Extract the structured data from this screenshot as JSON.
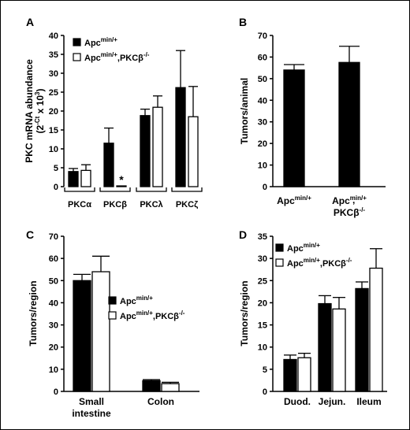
{
  "colors": {
    "series1": "#000000",
    "series2": "#ffffff",
    "stroke": "#000000"
  },
  "chart_data": [
    {
      "panel": "A",
      "type": "bar",
      "ylabel": "PKC mRNA abundance",
      "ylabel_units": "(2",
      "ylabel_sup": "-Ct",
      "ylabel_end": " x 10",
      "ylabel_sup2": "3",
      "ylabel_close": ")",
      "ylim": [
        0,
        40
      ],
      "yticks": [
        0,
        5,
        10,
        15,
        20,
        25,
        30,
        35,
        40
      ],
      "categories": [
        "PKCα",
        "PKCβ",
        "PKCλ",
        "PKCζ"
      ],
      "category_style": "bracket",
      "series": [
        {
          "name": "Apc",
          "name_sup": "min/+",
          "values": [
            4.0,
            11.5,
            18.8,
            26.2
          ],
          "errors": [
            0.8,
            4.0,
            1.7,
            9.8
          ]
        },
        {
          "name": "Apc",
          "name_sup": "min/+",
          "name_suffix": ",PKCβ",
          "name_suffix_sup": "-/-",
          "values": [
            4.3,
            0.2,
            21.0,
            18.5
          ],
          "errors": [
            1.5,
            0.0,
            3.0,
            8.0
          ]
        }
      ],
      "annotations": [
        {
          "text": "*",
          "category": 1,
          "series": 1
        }
      ],
      "legend": "top-left"
    },
    {
      "panel": "B",
      "type": "bar",
      "ylabel": "Tumors/animal",
      "ylim": [
        0,
        70
      ],
      "yticks": [
        0,
        10,
        20,
        30,
        40,
        50,
        60,
        70
      ],
      "categories": [
        "Apc",
        "Apc"
      ],
      "category_sups": [
        "min/+",
        "min/+"
      ],
      "category_line2": [
        "",
        "PKCβ"
      ],
      "category_line2_sups": [
        "",
        "-/-"
      ],
      "category_line2_suffix": [
        "",
        ","
      ],
      "series": [
        {
          "values": [
            54,
            57.5
          ],
          "errors": [
            2.5,
            7.5
          ]
        }
      ]
    },
    {
      "panel": "C",
      "type": "bar",
      "ylabel": "Tumors/region",
      "ylim": [
        0,
        70
      ],
      "yticks": [
        0,
        10,
        20,
        30,
        40,
        50,
        60,
        70
      ],
      "categories": [
        "Small",
        "Colon"
      ],
      "category_line2": [
        "intestine",
        ""
      ],
      "series": [
        {
          "name": "Apc",
          "name_sup": "min/+",
          "values": [
            50,
            4.8
          ],
          "errors": [
            2.8,
            0.5
          ]
        },
        {
          "name": "Apc",
          "name_sup": "min/+",
          "name_suffix": ",PKCβ",
          "name_suffix_sup": "-/-",
          "values": [
            54,
            3.5
          ],
          "errors": [
            7.0,
            0.6
          ]
        }
      ],
      "legend": "right"
    },
    {
      "panel": "D",
      "type": "bar",
      "ylabel": "Tumors/region",
      "ylim": [
        0,
        35
      ],
      "yticks": [
        0,
        5,
        10,
        15,
        20,
        25,
        30,
        35
      ],
      "categories": [
        "Duod.",
        "Jejun.",
        "Ileum"
      ],
      "series": [
        {
          "name": "Apc",
          "name_sup": "min/+",
          "values": [
            7.2,
            19.8,
            23.2
          ],
          "errors": [
            1.0,
            1.8,
            1.5
          ]
        },
        {
          "name": "Apc",
          "name_sup": "min/+",
          "name_suffix": ",PKCβ",
          "name_suffix_sup": "-/-",
          "values": [
            7.6,
            18.6,
            27.8
          ],
          "errors": [
            1.0,
            2.6,
            4.4
          ]
        }
      ],
      "legend": "top-left"
    }
  ]
}
